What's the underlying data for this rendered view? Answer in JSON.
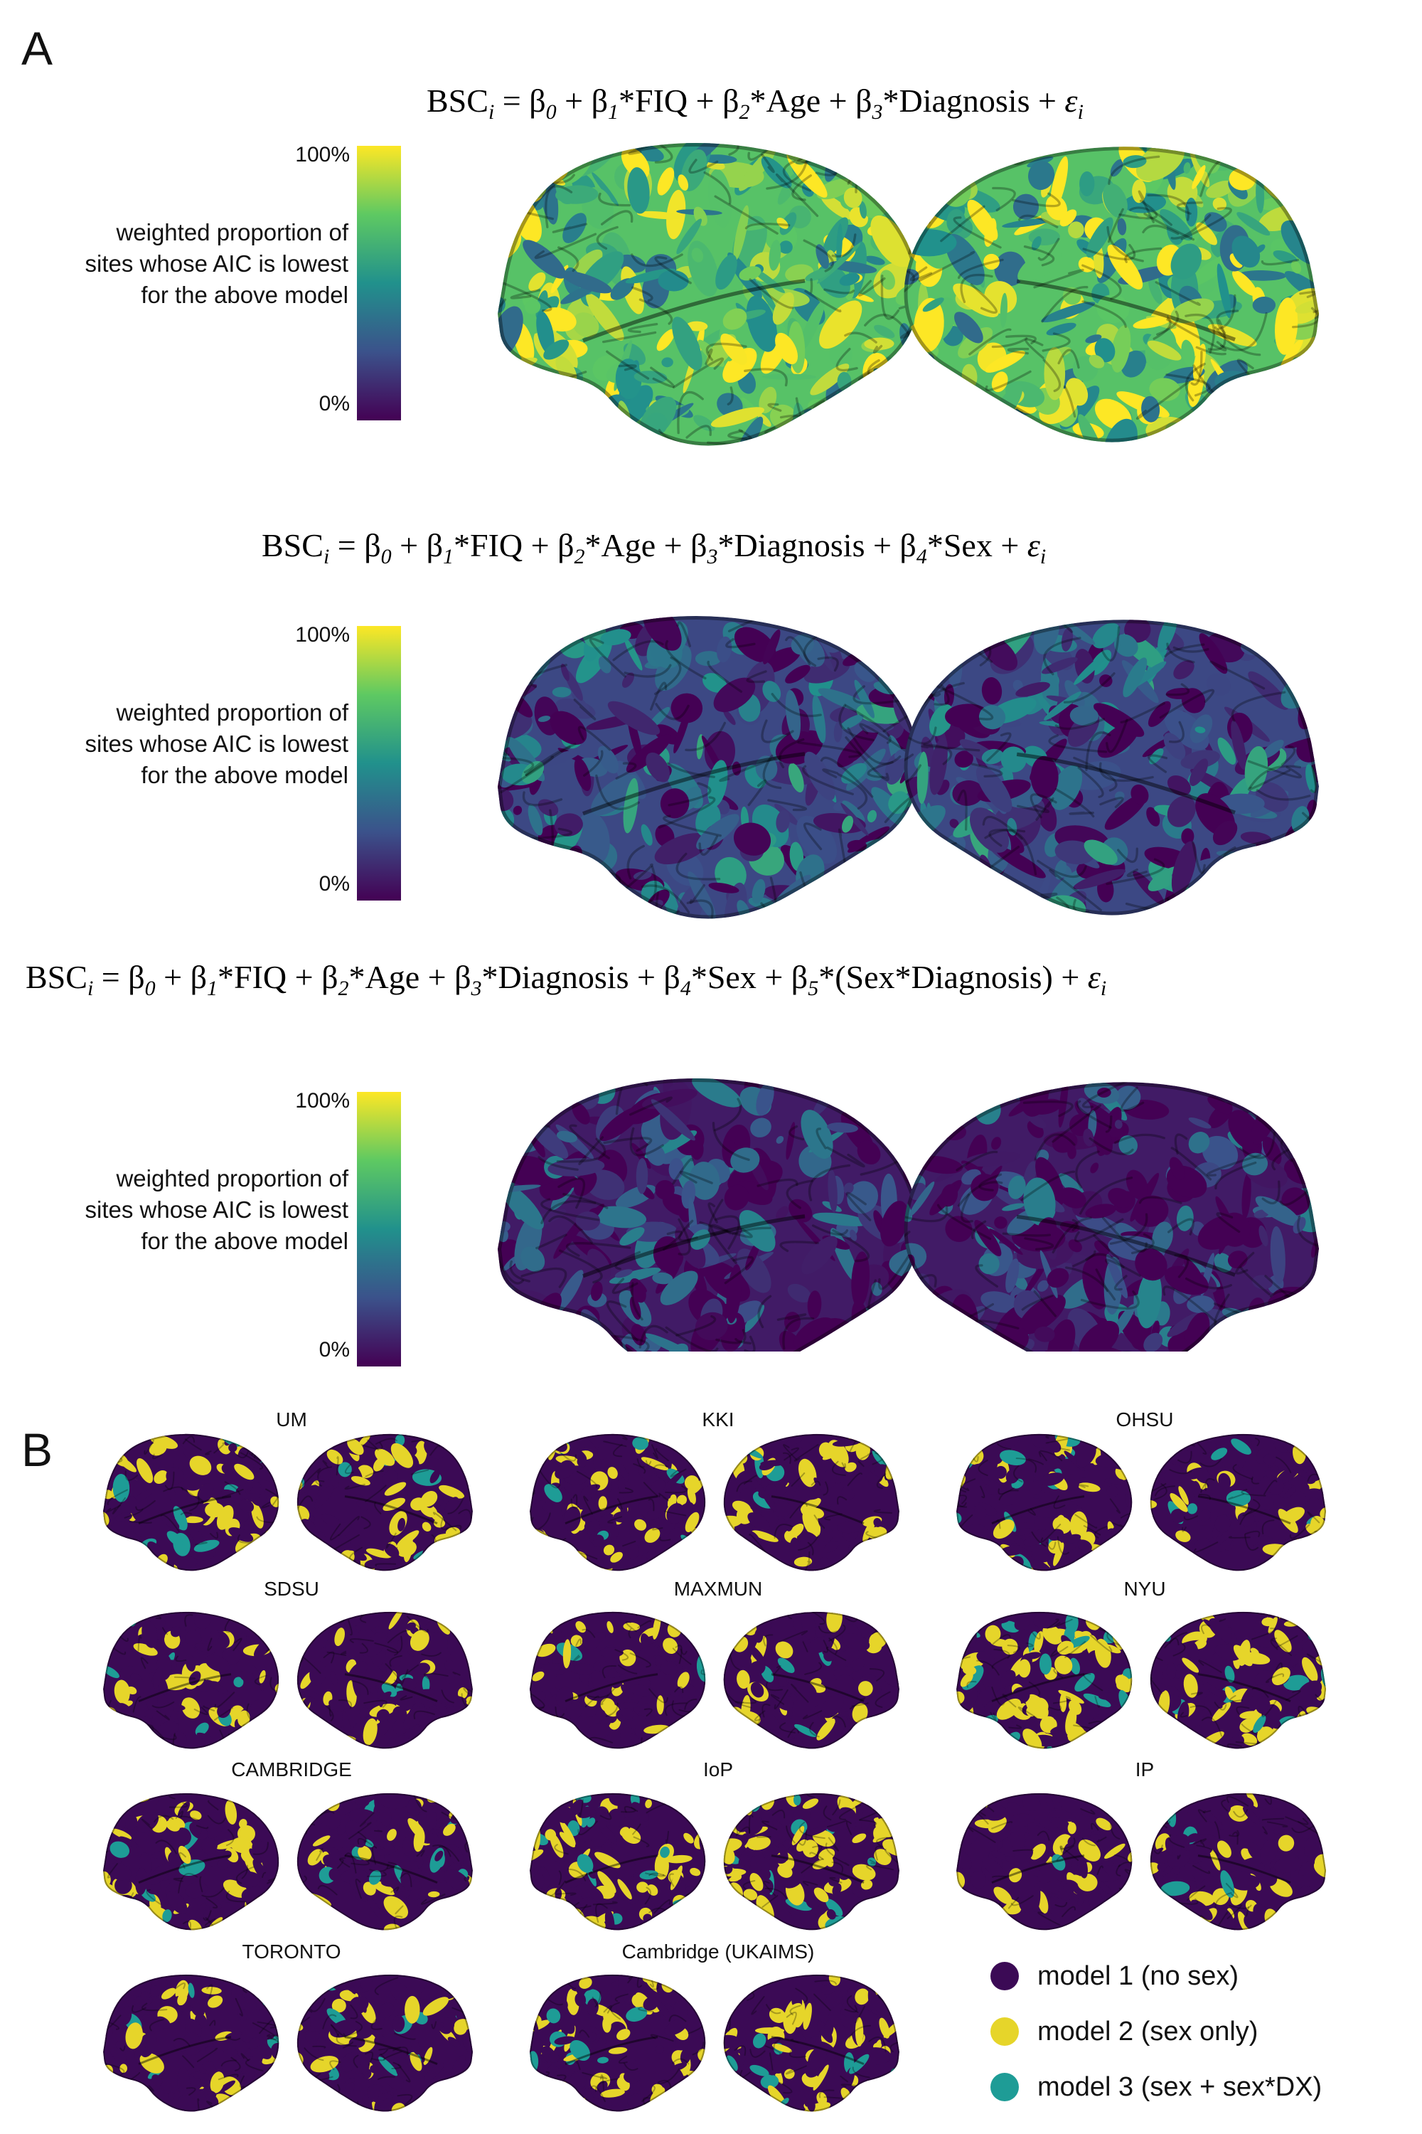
{
  "panel_a": {
    "letter": "A",
    "colorbar": {
      "max_label": "100%",
      "min_label": "0%",
      "label_lines": [
        "weighted proportion of",
        "sites whose AIC is lowest",
        "for the above model"
      ]
    },
    "colormap": [
      "#440154",
      "#3b528b",
      "#21918c",
      "#5ec962",
      "#fde725"
    ],
    "models": [
      {
        "formula": "BSC_i = β0 + β1*FIQ + β2*Age + β3*Diagnosis + ε_i",
        "mean_level": 0.72
      },
      {
        "formula": "BSC_i = β0 + β1*FIQ + β2*Age + β3*Diagnosis + β4*Sex + ε_i",
        "mean_level": 0.22
      },
      {
        "formula": "BSC_i = β0 + β1*FIQ + β2*Age + β3*Diagnosis + β4*Sex + β5*(Sex*Diagnosis) + ε_i",
        "mean_level": 0.08
      }
    ]
  },
  "panel_b": {
    "letter": "B",
    "sites": [
      "UM",
      "KKI",
      "OHSU",
      "SDSU",
      "MAXMUN",
      "NYU",
      "CAMBRIDGE",
      "IoP",
      "IP",
      "TORONTO",
      "Cambridge (UKAIMS)"
    ],
    "legend": [
      {
        "label": "model 1 (no sex)",
        "color": "#3b0a55"
      },
      {
        "label": "model 2 (sex only)",
        "color": "#e6d52a"
      },
      {
        "label": "model 3 (sex + sex*DX)",
        "color": "#1e9c96"
      }
    ]
  }
}
